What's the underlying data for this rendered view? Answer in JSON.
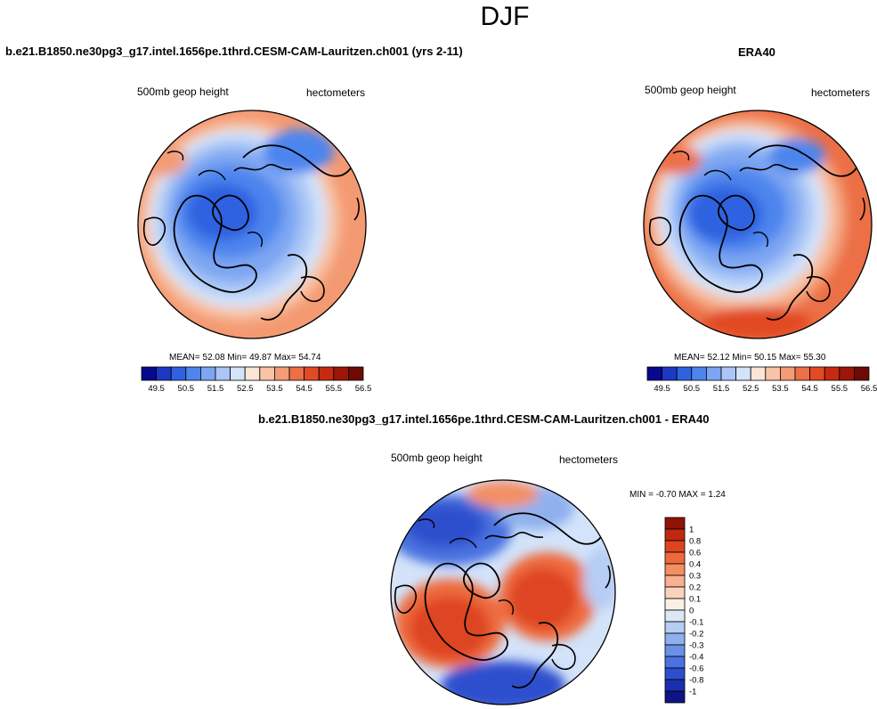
{
  "figure": {
    "season": "DJF"
  },
  "chart_data": [
    {
      "type": "heatmap",
      "projection": "north-polar-stereographic",
      "title": "b.e21.B1850.ne30pg3_g17.intel.1656pe.1thrd.CESM-CAM-Lauritzen.ch001 (yrs 2-11)",
      "left_label": "500mb geop height",
      "right_label": "hectometers",
      "stats": {
        "mean_label": "MEAN=",
        "mean": "52.08",
        "min_label": "Min=",
        "min": "49.87",
        "max_label": "Max=",
        "max": "54.74"
      },
      "colorbar": {
        "orientation": "horizontal",
        "levels": [
          "49.5",
          "50.5",
          "51.5",
          "52.5",
          "53.5",
          "54.5",
          "55.5",
          "56.5"
        ],
        "colors": [
          "#08088c",
          "#1d38c2",
          "#2f62e0",
          "#4d85ee",
          "#7da6f2",
          "#a9c6f6",
          "#d3e3fa",
          "#fbe6d6",
          "#f8c3a6",
          "#f39c76",
          "#ec6f46",
          "#e14a23",
          "#c62a12",
          "#9c160a",
          "#6e0a04"
        ]
      }
    },
    {
      "type": "heatmap",
      "projection": "north-polar-stereographic",
      "title": "ERA40",
      "left_label": "500mb geop height",
      "right_label": "hectometers",
      "stats": {
        "mean_label": "MEAN=",
        "mean": "52.12",
        "min_label": "Min=",
        "min": "50.15",
        "max_label": "Max=",
        "max": "55.30"
      },
      "colorbar": {
        "orientation": "horizontal",
        "levels": [
          "49.5",
          "50.5",
          "51.5",
          "52.5",
          "53.5",
          "54.5",
          "55.5",
          "56.5"
        ],
        "colors": [
          "#08088c",
          "#1d38c2",
          "#2f62e0",
          "#4d85ee",
          "#7da6f2",
          "#a9c6f6",
          "#d3e3fa",
          "#fbe6d6",
          "#f8c3a6",
          "#f39c76",
          "#ec6f46",
          "#e14a23",
          "#c62a12",
          "#9c160a",
          "#6e0a04"
        ]
      }
    },
    {
      "type": "heatmap",
      "projection": "north-polar-stereographic",
      "title": "b.e21.B1850.ne30pg3_g17.intel.1656pe.1thrd.CESM-CAM-Lauritzen.ch001 - ERA40",
      "left_label": "500mb geop height",
      "right_label": "hectometers",
      "stats": {
        "min_label": "MIN =",
        "min": "-0.70",
        "max_label": "MAX =",
        "max": "1.24"
      },
      "colorbar": {
        "orientation": "vertical",
        "levels": [
          "1",
          "0.8",
          "0.6",
          "0.4",
          "0.3",
          "0.2",
          "0.1",
          "0",
          "-0.1",
          "-0.2",
          "-0.3",
          "-0.4",
          "-0.6",
          "-0.8",
          "-1"
        ],
        "colors": [
          "#8f1306",
          "#c0290f",
          "#de4420",
          "#ee6a3e",
          "#f48f63",
          "#f8b090",
          "#fbd3bd",
          "#fcf0e4",
          "#dce8f8",
          "#b6cdf4",
          "#8fb0ee",
          "#6a91e8",
          "#4a72e0",
          "#2d4fcd",
          "#1a2fae",
          "#0c1486"
        ]
      }
    }
  ]
}
